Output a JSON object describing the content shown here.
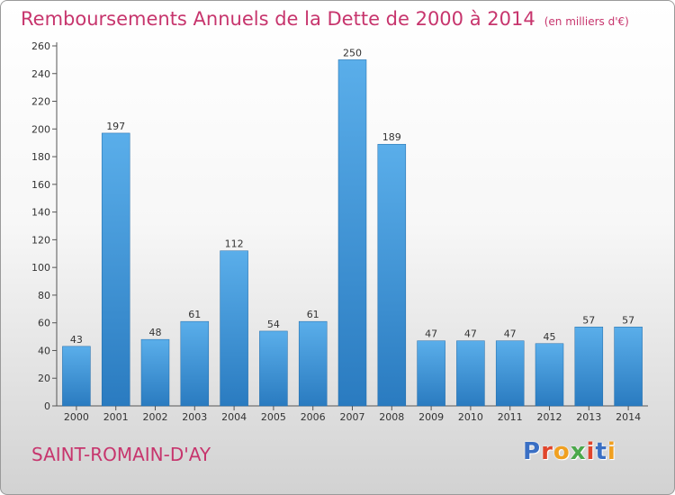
{
  "header": {
    "title": "Remboursements Annuels de la Dette de 2000 à 2014",
    "subtitle": "(en milliers d'€)"
  },
  "footer": {
    "commune": "SAINT-ROMAIN-D'AY",
    "logo": "Proxiti"
  },
  "colors": {
    "title": "#c7356d",
    "bar_light": "#5aaeea",
    "bar_dark": "#2a7bc0"
  },
  "chart_data": {
    "type": "bar",
    "title": "Remboursements Annuels de la Dette de 2000 à 2014",
    "categories": [
      "2000",
      "2001",
      "2002",
      "2003",
      "2004",
      "2005",
      "2006",
      "2007",
      "2008",
      "2009",
      "2010",
      "2011",
      "2012",
      "2013",
      "2014"
    ],
    "values": [
      43,
      197,
      48,
      61,
      112,
      54,
      61,
      250,
      189,
      47,
      47,
      47,
      45,
      57,
      57
    ],
    "yticks": [
      0,
      20,
      40,
      60,
      80,
      100,
      120,
      140,
      160,
      180,
      200,
      220,
      240,
      260
    ],
    "ylim": [
      0,
      260
    ],
    "grid": false,
    "legend": "none"
  }
}
